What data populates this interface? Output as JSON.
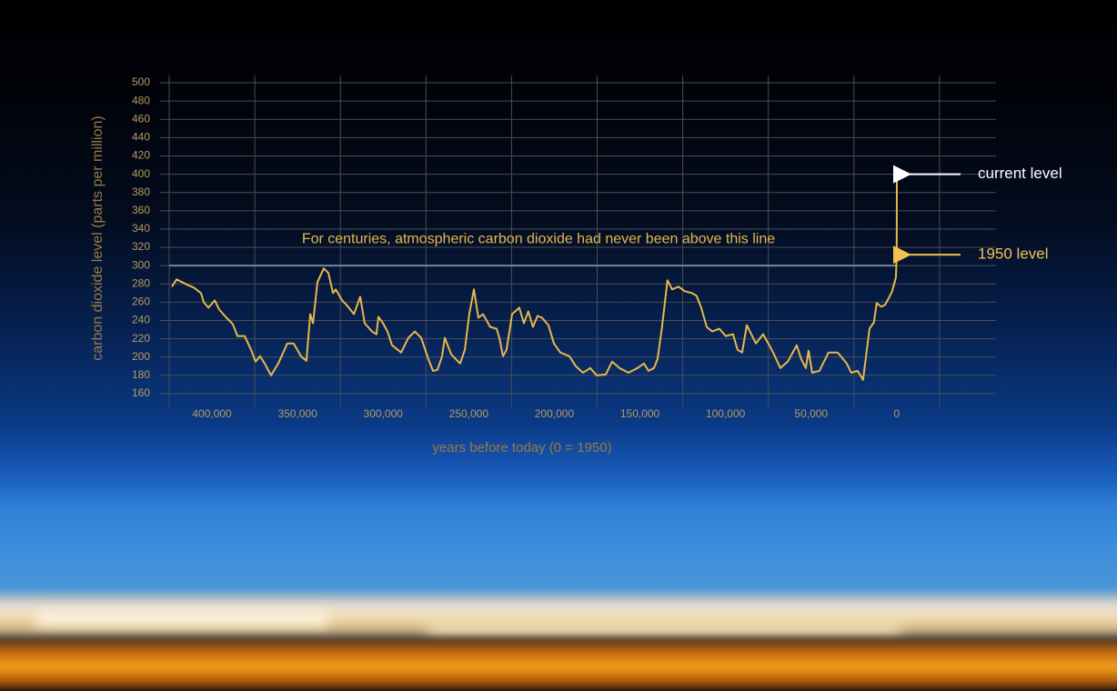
{
  "chart_data": {
    "type": "line",
    "y_label": "carbon dioxide level (parts per million)",
    "x_label": "years before today (0 = 1950)",
    "color": "#e9b74a",
    "grid": true,
    "xlim": [
      425000,
      -58000
    ],
    "ylim": [
      160,
      500
    ],
    "xticks": [
      {
        "value": 400000,
        "label": "400,000"
      },
      {
        "value": 350000,
        "label": "350,000"
      },
      {
        "value": 300000,
        "label": "300,000"
      },
      {
        "value": 250000,
        "label": "250,000"
      },
      {
        "value": 200000,
        "label": "200,000"
      },
      {
        "value": 150000,
        "label": "150,000"
      },
      {
        "value": 100000,
        "label": "100,000"
      },
      {
        "value": 50000,
        "label": "50,000"
      },
      0
    ],
    "yticks": [
      160,
      180,
      200,
      220,
      240,
      260,
      280,
      300,
      320,
      340,
      360,
      380,
      400,
      420,
      440,
      460,
      480,
      500
    ],
    "reference_line": {
      "value": 300,
      "label": "For centuries, atmospheric carbon dioxide had never been above this line",
      "color": "#e6b84b"
    },
    "annotations": [
      {
        "text": "current level",
        "value": 400,
        "color": "#ffffff"
      },
      {
        "text": "1950 level",
        "value": 312,
        "color": "#f2c14e"
      }
    ],
    "x": [
      423400,
      420700,
      414300,
      410600,
      406400,
      404800,
      402100,
      398400,
      395800,
      391500,
      387800,
      385100,
      380900,
      377200,
      374500,
      371900,
      369200,
      365500,
      361300,
      356000,
      352300,
      348000,
      344800,
      342600,
      341000,
      338400,
      334700,
      332000,
      329300,
      327700,
      324000,
      321400,
      317100,
      313400,
      310800,
      306500,
      303900,
      302800,
      300100,
      297500,
      294800,
      289500,
      285300,
      281500,
      277800,
      273600,
      270900,
      268300,
      265600,
      264000,
      260300,
      255000,
      252300,
      249700,
      247000,
      244400,
      241700,
      237500,
      233700,
      232100,
      230000,
      227900,
      224700,
      220500,
      217800,
      215200,
      212500,
      209800,
      207200,
      203500,
      200300,
      196500,
      191200,
      187500,
      183300,
      179000,
      175300,
      170000,
      166300,
      162000,
      156700,
      151400,
      147700,
      145000,
      141800,
      139700,
      137100,
      133900,
      131200,
      127500,
      123800,
      119500,
      116900,
      114200,
      111000,
      107800,
      103600,
      99900,
      95600,
      93000,
      90300,
      87600,
      85000,
      82300,
      78100,
      74400,
      71700,
      68000,
      63700,
      58400,
      55800,
      53100,
      51500,
      49400,
      45200,
      39800,
      34500,
      29200,
      26600,
      22800,
      19700,
      15900,
      13300,
      11700,
      9000,
      6900,
      4800,
      2700,
      500,
      0,
      -65
    ],
    "values": [
      277,
      285,
      279,
      276,
      270,
      260,
      254,
      262,
      252,
      243,
      236,
      223,
      223,
      208,
      195,
      201,
      193,
      180,
      193,
      215,
      215,
      201,
      196,
      247,
      237,
      282,
      297,
      292,
      270,
      274,
      262,
      257,
      247,
      266,
      237,
      228,
      225,
      244,
      237,
      228,
      213,
      205,
      221,
      228,
      221,
      198,
      185,
      186,
      201,
      221,
      203,
      193,
      208,
      247,
      274,
      243,
      247,
      233,
      231,
      221,
      201,
      208,
      247,
      254,
      237,
      250,
      233,
      245,
      243,
      235,
      215,
      205,
      201,
      190,
      183,
      188,
      180,
      181,
      195,
      188,
      183,
      188,
      193,
      185,
      188,
      198,
      233,
      284,
      274,
      277,
      272,
      270,
      267,
      254,
      233,
      228,
      231,
      223,
      225,
      208,
      205,
      235,
      225,
      215,
      225,
      213,
      203,
      188,
      195,
      213,
      198,
      188,
      207,
      183,
      185,
      205,
      205,
      193,
      183,
      185,
      175,
      231,
      238,
      259,
      255,
      257,
      264,
      272,
      287,
      310,
      400
    ]
  }
}
